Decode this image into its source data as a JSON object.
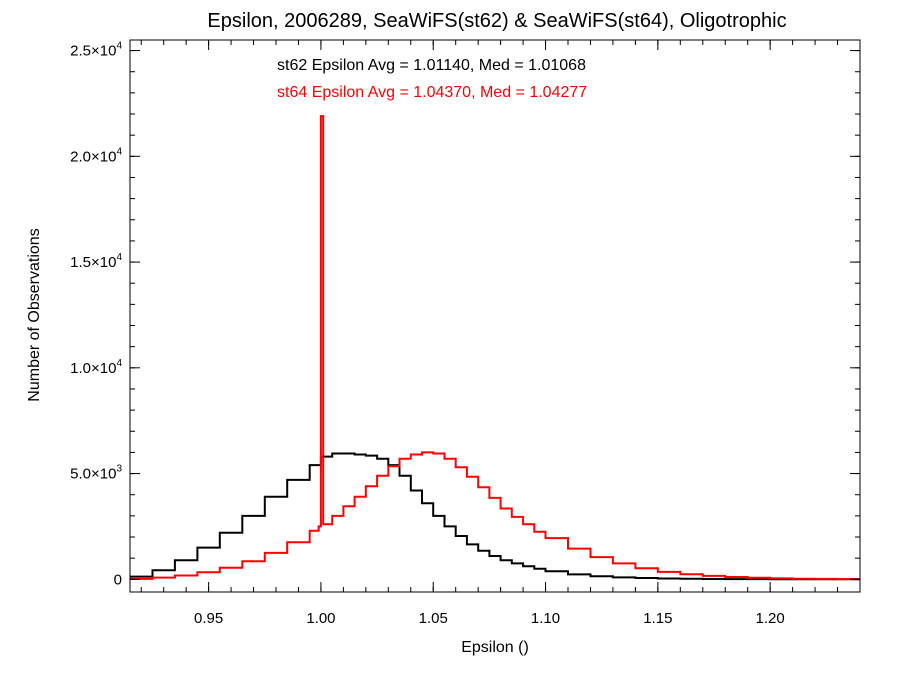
{
  "chart_data": {
    "type": "line",
    "title": "Epsilon, 2006289, SeaWiFS(st62) & SeaWiFS(st64), Oligotrophic",
    "xlabel": "Epsilon ()",
    "ylabel": "Number of Observations",
    "xlim": [
      0.915,
      1.24
    ],
    "ylim": [
      -600,
      25500
    ],
    "x_ticks": [
      {
        "value": 0.95,
        "label": "0.95"
      },
      {
        "value": 1.0,
        "label": "1.00"
      },
      {
        "value": 1.05,
        "label": "1.05"
      },
      {
        "value": 1.1,
        "label": "1.10"
      },
      {
        "value": 1.15,
        "label": "1.15"
      },
      {
        "value": 1.2,
        "label": "1.20"
      }
    ],
    "y_ticks": [
      {
        "value": 0,
        "mantissa": "0",
        "exponent": ""
      },
      {
        "value": 5000,
        "mantissa": "5.0×10",
        "exponent": "3"
      },
      {
        "value": 10000,
        "mantissa": "1.0×10",
        "exponent": "4"
      },
      {
        "value": 15000,
        "mantissa": "1.5×10",
        "exponent": "4"
      },
      {
        "value": 20000,
        "mantissa": "2.0×10",
        "exponent": "4"
      },
      {
        "value": 25000,
        "mantissa": "2.5×10",
        "exponent": "4"
      }
    ],
    "grid": false,
    "annotations": [
      {
        "text": "st62 Epsilon Avg = 1.01140, Med = 1.01068",
        "color": "#000000"
      },
      {
        "text": "st64 Epsilon Avg = 1.04370, Med = 1.04277",
        "color": "#ff0000"
      }
    ],
    "series": [
      {
        "color": "#000000",
        "x": [
          0.915,
          0.925,
          0.935,
          0.945,
          0.955,
          0.965,
          0.975,
          0.985,
          0.995,
          1.0,
          1.005,
          1.01,
          1.015,
          1.02,
          1.025,
          1.03,
          1.035,
          1.04,
          1.045,
          1.05,
          1.055,
          1.06,
          1.065,
          1.07,
          1.075,
          1.08,
          1.085,
          1.09,
          1.095,
          1.1,
          1.11,
          1.12,
          1.13,
          1.14,
          1.15,
          1.16,
          1.17,
          1.18,
          1.19,
          1.2,
          1.21,
          1.22,
          1.23,
          1.24
        ],
        "y": [
          130,
          430,
          900,
          1500,
          2200,
          3000,
          3900,
          4700,
          5400,
          5800,
          5950,
          5950,
          5900,
          5850,
          5700,
          5400,
          4900,
          4200,
          3600,
          3000,
          2500,
          2050,
          1650,
          1350,
          1100,
          900,
          750,
          620,
          500,
          380,
          230,
          140,
          90,
          60,
          40,
          25,
          15,
          10,
          8,
          5,
          3,
          2,
          1,
          1
        ]
      },
      {
        "color": "#ff0000",
        "x": [
          0.915,
          0.925,
          0.935,
          0.945,
          0.955,
          0.965,
          0.975,
          0.985,
          0.995,
          0.999,
          1.0,
          1.001,
          1.005,
          1.01,
          1.015,
          1.02,
          1.025,
          1.03,
          1.035,
          1.04,
          1.045,
          1.05,
          1.055,
          1.06,
          1.065,
          1.07,
          1.075,
          1.08,
          1.085,
          1.09,
          1.095,
          1.1,
          1.11,
          1.12,
          1.13,
          1.14,
          1.15,
          1.16,
          1.17,
          1.18,
          1.19,
          1.2,
          1.21,
          1.22,
          1.23,
          1.24
        ],
        "y": [
          20,
          80,
          180,
          330,
          550,
          850,
          1250,
          1750,
          2300,
          2500,
          21900,
          2600,
          3000,
          3450,
          3900,
          4400,
          4900,
          5350,
          5700,
          5900,
          6000,
          5950,
          5700,
          5300,
          4850,
          4350,
          3850,
          3350,
          2950,
          2600,
          2250,
          1950,
          1450,
          1050,
          750,
          520,
          350,
          240,
          160,
          110,
          70,
          45,
          30,
          20,
          12,
          8
        ]
      }
    ]
  }
}
